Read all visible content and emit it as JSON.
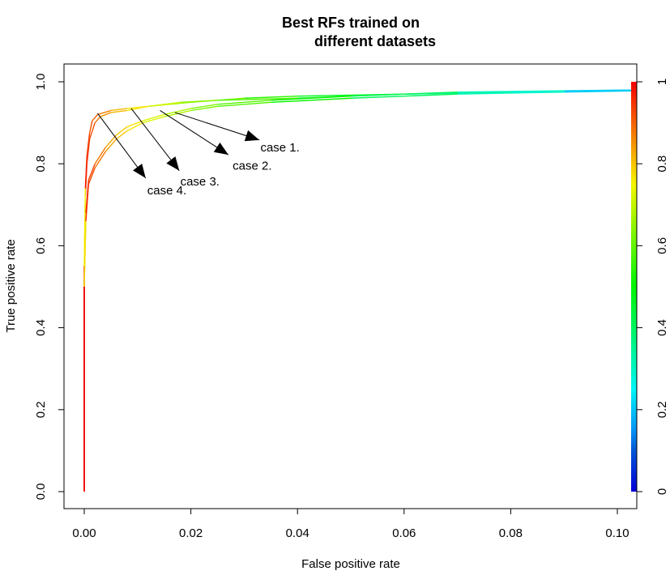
{
  "chart_data": {
    "type": "line",
    "title_line1": "Best RFs trained on",
    "title_line2": "different datasets",
    "xlabel": "False positive rate",
    "ylabel": "True positive rate",
    "xlim": [
      0,
      0.1035
    ],
    "ylim": [
      0,
      1
    ],
    "x_ticks": [
      0.0,
      0.02,
      0.04,
      0.06,
      0.08,
      0.1
    ],
    "x_tick_labels": [
      "0.00",
      "0.02",
      "0.04",
      "0.06",
      "0.08",
      "0.10"
    ],
    "y_ticks": [
      0.0,
      0.2,
      0.4,
      0.6,
      0.8,
      1.0
    ],
    "y_tick_labels": [
      "0.0",
      "0.2",
      "0.4",
      "0.6",
      "0.8",
      "1.0"
    ],
    "colorbar": {
      "ticks": [
        0,
        0.2,
        0.4,
        0.6,
        0.8,
        1
      ],
      "tick_labels": [
        "0",
        "0.2",
        "0.4",
        "0.6",
        "0.8",
        "1"
      ],
      "colormap": "rainbow (blue → cyan → green → yellow → red)"
    },
    "series": [
      {
        "points": [
          [
            0.0,
            0.0
          ],
          [
            0.0,
            0.55
          ],
          [
            0.0002,
            0.72
          ],
          [
            0.0005,
            0.8
          ],
          [
            0.001,
            0.86
          ],
          [
            0.002,
            0.9
          ],
          [
            0.003,
            0.915
          ],
          [
            0.005,
            0.925
          ],
          [
            0.008,
            0.93
          ],
          [
            0.012,
            0.94
          ],
          [
            0.016,
            0.945
          ],
          [
            0.02,
            0.95
          ],
          [
            0.03,
            0.96
          ],
          [
            0.04,
            0.965
          ],
          [
            0.06,
            0.97
          ],
          [
            0.08,
            0.975
          ],
          [
            0.1035,
            0.98
          ]
        ]
      },
      {
        "points": [
          [
            0.0,
            0.0
          ],
          [
            0.0,
            0.55
          ],
          [
            0.0002,
            0.74
          ],
          [
            0.0005,
            0.82
          ],
          [
            0.001,
            0.875
          ],
          [
            0.0015,
            0.905
          ],
          [
            0.0025,
            0.92
          ],
          [
            0.005,
            0.93
          ],
          [
            0.008,
            0.935
          ],
          [
            0.012,
            0.94
          ],
          [
            0.018,
            0.95
          ],
          [
            0.025,
            0.955
          ],
          [
            0.04,
            0.96
          ],
          [
            0.06,
            0.97
          ],
          [
            0.08,
            0.975
          ],
          [
            0.1035,
            0.98
          ]
        ]
      },
      {
        "points": [
          [
            0.0,
            0.0
          ],
          [
            0.0,
            0.5
          ],
          [
            0.0003,
            0.68
          ],
          [
            0.0008,
            0.76
          ],
          [
            0.002,
            0.8
          ],
          [
            0.004,
            0.84
          ],
          [
            0.006,
            0.87
          ],
          [
            0.008,
            0.89
          ],
          [
            0.011,
            0.905
          ],
          [
            0.015,
            0.92
          ],
          [
            0.02,
            0.935
          ],
          [
            0.025,
            0.945
          ],
          [
            0.035,
            0.955
          ],
          [
            0.05,
            0.965
          ],
          [
            0.07,
            0.975
          ],
          [
            0.09,
            0.978
          ],
          [
            0.1035,
            0.98
          ]
        ]
      },
      {
        "points": [
          [
            0.0,
            0.0
          ],
          [
            0.0,
            0.5
          ],
          [
            0.0003,
            0.66
          ],
          [
            0.0008,
            0.75
          ],
          [
            0.002,
            0.79
          ],
          [
            0.004,
            0.83
          ],
          [
            0.006,
            0.86
          ],
          [
            0.008,
            0.88
          ],
          [
            0.011,
            0.9
          ],
          [
            0.015,
            0.915
          ],
          [
            0.02,
            0.93
          ],
          [
            0.025,
            0.94
          ],
          [
            0.035,
            0.95
          ],
          [
            0.05,
            0.96
          ],
          [
            0.07,
            0.97
          ],
          [
            0.09,
            0.975
          ],
          [
            0.1035,
            0.978
          ]
        ]
      }
    ],
    "annotations": [
      {
        "label": "case 1.",
        "from": [
          0.017,
          0.925
        ],
        "to": [
          0.0328,
          0.858
        ],
        "text_at": [
          0.033,
          0.84
        ]
      },
      {
        "label": "case 2.",
        "from": [
          0.0142,
          0.93
        ],
        "to": [
          0.027,
          0.822
        ],
        "text_at": [
          0.0278,
          0.795
        ]
      },
      {
        "label": "case 3.",
        "from": [
          0.0088,
          0.935
        ],
        "to": [
          0.0178,
          0.783
        ],
        "text_at": [
          0.018,
          0.757
        ]
      },
      {
        "label": "case 4.",
        "from": [
          0.0025,
          0.923
        ],
        "to": [
          0.0115,
          0.765
        ],
        "text_at": [
          0.0118,
          0.735
        ]
      }
    ],
    "grid": false,
    "legend": "none"
  }
}
